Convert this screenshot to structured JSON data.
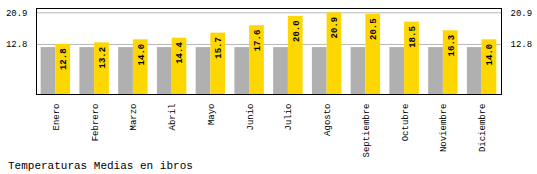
{
  "chart_data": {
    "type": "bar",
    "title": "Temperaturas Medias en ibros",
    "categories": [
      "Enero",
      "Febrero",
      "Marzo",
      "Abril",
      "Mayo",
      "Junio",
      "Julio",
      "Agosto",
      "Septiembre",
      "Octubre",
      "Noviembre",
      "Diciembre"
    ],
    "series": [
      {
        "color": "#B0B0B0",
        "values": [
          12.0,
          12.0,
          12.0,
          12.0,
          12.0,
          12.0,
          12.0,
          12.0,
          12.0,
          12.0,
          12.0,
          12.0
        ]
      },
      {
        "color": "#FFD700",
        "values": [
          12.8,
          13.2,
          14.0,
          14.4,
          15.7,
          17.6,
          20.0,
          20.9,
          20.5,
          18.5,
          16.3,
          14.0
        ],
        "value_labels": [
          "12.8",
          "13.2",
          "14.0",
          "14.4",
          "15.7",
          "17.6",
          "20.0",
          "20.9",
          "20.5",
          "18.5",
          "16.3",
          "14.0"
        ]
      }
    ],
    "ylim": [
      0,
      22.0
    ],
    "yticks": [
      12.8,
      20.9
    ],
    "grid": true,
    "data_labels": true
  }
}
